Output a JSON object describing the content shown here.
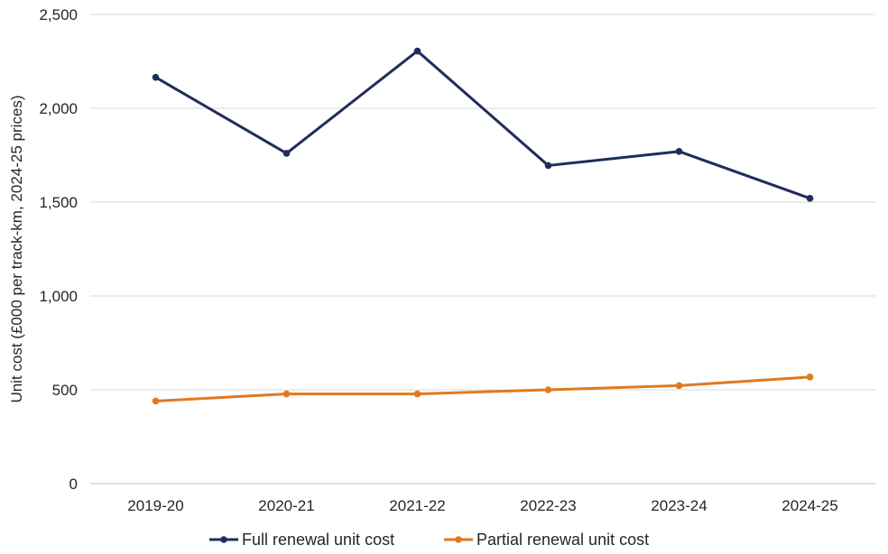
{
  "chart_data": {
    "type": "line",
    "title": "",
    "xlabel": "",
    "ylabel": "Unit cost (£000 per track-km, 2024-25 prices)",
    "categories": [
      "2019-20",
      "2020-21",
      "2021-22",
      "2022-23",
      "2023-24",
      "2024-25"
    ],
    "ylim": [
      0,
      2500
    ],
    "yticks": [
      0,
      500,
      1000,
      1500,
      2000,
      2500
    ],
    "ytick_labels": [
      "0",
      "500",
      "1,000",
      "1,500",
      "2,000",
      "2,500"
    ],
    "grid": true,
    "legend_position": "bottom",
    "series": [
      {
        "name": "Full renewal unit cost",
        "color": "#1f2d5c",
        "values": [
          2165,
          1760,
          2305,
          1695,
          1770,
          1520
        ]
      },
      {
        "name": "Partial renewal unit cost",
        "color": "#e07a1f",
        "values": [
          440,
          478,
          478,
          500,
          522,
          568
        ]
      }
    ]
  }
}
